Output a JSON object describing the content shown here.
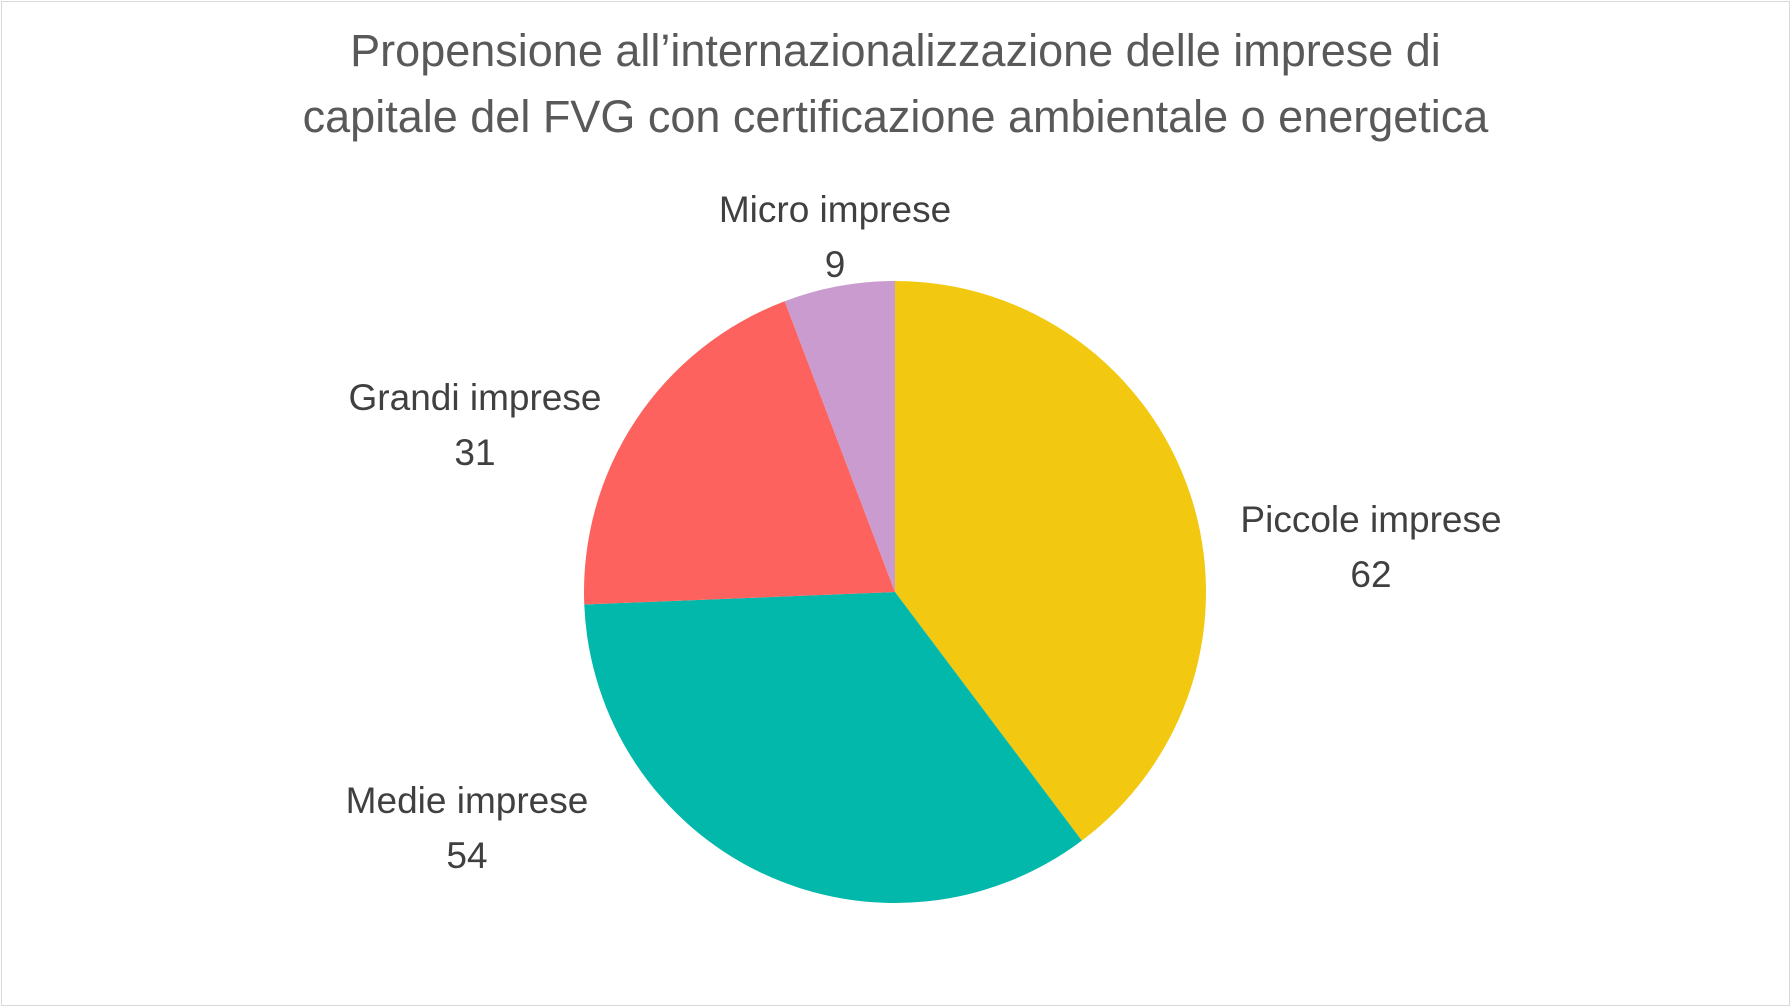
{
  "chart_data": {
    "type": "pie",
    "title_lines": [
      "Propensione all’internazionalizzazione delle imprese di",
      "capitale del FVG con certificazione ambientale o energetica"
    ],
    "slices": [
      {
        "name": "Piccole imprese",
        "value": 62,
        "color": "#f2c811"
      },
      {
        "name": "Medie imprese",
        "value": 54,
        "color": "#01b8aa"
      },
      {
        "name": "Grandi imprese",
        "value": 31,
        "color": "#fd625e"
      },
      {
        "name": "Micro imprese",
        "value": 9,
        "color": "#c99bce"
      }
    ],
    "start_angle_deg": 0,
    "direction": "clockwise",
    "legend": "none",
    "data_labels": "category-and-value-outside"
  }
}
